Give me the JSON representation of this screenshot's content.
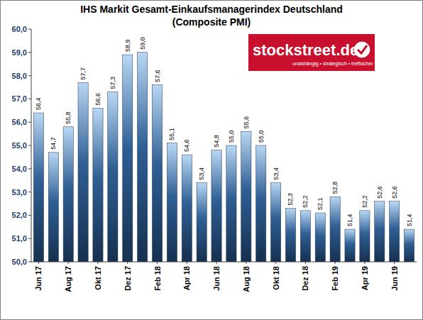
{
  "chart_data": {
    "type": "bar",
    "title": "IHS Markit Gesamt-Einkaufsmanagerindex Deutschland",
    "subtitle": "(Composite PMI)",
    "annotations": [
      "stockstreet.de",
      "unabhängig • strategisch • treffsicher"
    ],
    "categories": [
      "Jun 17",
      null,
      "Aug 17",
      null,
      "Okt 17",
      null,
      "Dez 17",
      null,
      "Feb 18",
      null,
      "Apr 18",
      null,
      "Jun 18",
      null,
      "Aug 18",
      null,
      "Okt 18",
      null,
      "Dez 18",
      null,
      "Feb 19",
      null,
      "Apr 19",
      null,
      "Jun 19",
      null
    ],
    "values": [
      56.4,
      54.7,
      55.8,
      57.7,
      56.6,
      57.3,
      58.9,
      59.0,
      57.6,
      55.1,
      54.6,
      53.4,
      54.8,
      55.0,
      55.6,
      55.0,
      53.4,
      52.3,
      52.2,
      52.1,
      52.8,
      51.4,
      52.2,
      52.6,
      52.6,
      51.4
    ],
    "value_labels": [
      "56,4",
      "54,7",
      "55,8",
      "57,7",
      "56,6",
      "57,3",
      "58,9",
      "59,0",
      "57,6",
      "55,1",
      "54,6",
      "53,4",
      "54,8",
      "55,0",
      "55,6",
      "55,0",
      "53,4",
      "52,3",
      "52,2",
      "52,1",
      "52,8",
      "51,4",
      "52,2",
      "52,6",
      "52,6",
      "51,4"
    ],
    "color": "#2f5f94",
    "data_labels": true,
    "grid": false,
    "ylim": [
      50,
      60
    ],
    "yticks": [
      {
        "value": 50,
        "label": "50,0"
      },
      {
        "value": 51,
        "label": "51,0"
      },
      {
        "value": 52,
        "label": "52,0"
      },
      {
        "value": 53,
        "label": "53,0"
      },
      {
        "value": 54,
        "label": "54,0"
      },
      {
        "value": 55,
        "label": "55,0"
      },
      {
        "value": 56,
        "label": "56,0"
      },
      {
        "value": 57,
        "label": "57,0"
      },
      {
        "value": 58,
        "label": "58,0"
      },
      {
        "value": 59,
        "label": "59,0"
      },
      {
        "value": 60,
        "label": "60,0"
      }
    ]
  }
}
